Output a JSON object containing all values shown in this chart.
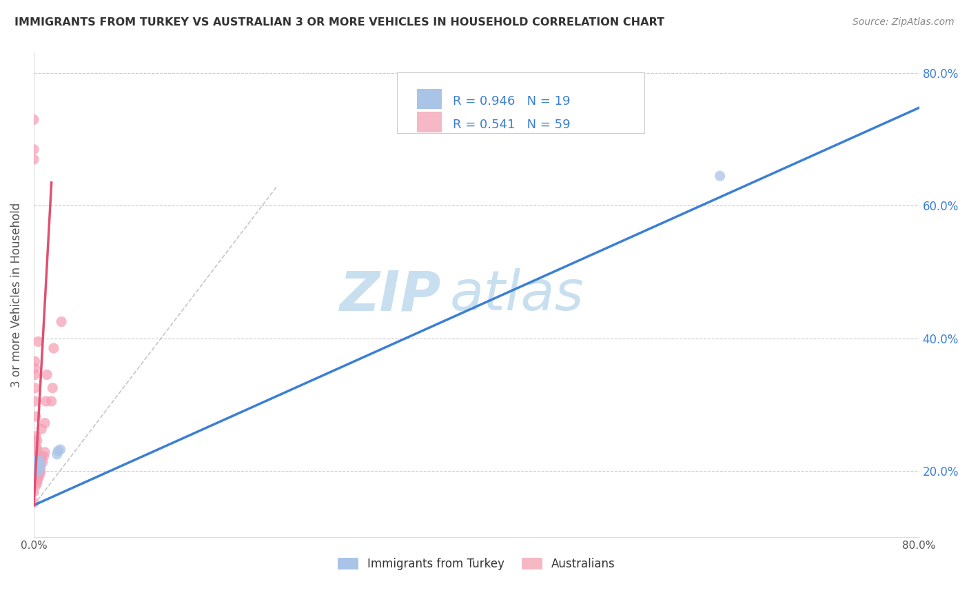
{
  "title": "IMMIGRANTS FROM TURKEY VS AUSTRALIAN 3 OR MORE VEHICLES IN HOUSEHOLD CORRELATION CHART",
  "source": "Source: ZipAtlas.com",
  "ylabel_left": "3 or more Vehicles in Household",
  "xlim": [
    0.0,
    0.8
  ],
  "ylim": [
    0.1,
    0.83
  ],
  "ytick_positions": [
    0.2,
    0.4,
    0.6,
    0.8
  ],
  "ytick_labels_right": [
    "20.0%",
    "40.0%",
    "60.0%",
    "80.0%"
  ],
  "xtick_positions": [
    0.0,
    0.1,
    0.2,
    0.3,
    0.4,
    0.5,
    0.6,
    0.7,
    0.8
  ],
  "xtick_labels": [
    "0.0%",
    "",
    "",
    "",
    "",
    "",
    "",
    "",
    "80.0%"
  ],
  "grid_color": "#cccccc",
  "background_color": "#ffffff",
  "watermark_zip": "ZIP",
  "watermark_atlas": "atlas",
  "watermark_color": "#c8dff0",
  "legend_R1": "R = 0.946",
  "legend_N1": "N = 19",
  "legend_R2": "R = 0.541",
  "legend_N2": "N = 59",
  "legend_color1": "#aac4e8",
  "legend_color2": "#f5b8c4",
  "dot_color_blue": "#aac4e8",
  "dot_color_pink": "#f5a0b5",
  "line_color_blue": "#3a7fd5",
  "line_color_pink": "#e05070",
  "dot_alpha": 0.75,
  "dot_size": 120,
  "blue_scatter_x": [
    0.0,
    0.0,
    0.001,
    0.001,
    0.002,
    0.002,
    0.002,
    0.003,
    0.003,
    0.003,
    0.004,
    0.004,
    0.005,
    0.005,
    0.006,
    0.021,
    0.022,
    0.024,
    0.62
  ],
  "blue_scatter_y": [
    0.2,
    0.215,
    0.2,
    0.205,
    0.198,
    0.207,
    0.212,
    0.205,
    0.21,
    0.215,
    0.2,
    0.208,
    0.21,
    0.215,
    0.207,
    0.225,
    0.23,
    0.232,
    0.645
  ],
  "pink_scatter_x": [
    0.0,
    0.0,
    0.0,
    0.0,
    0.0,
    0.001,
    0.001,
    0.001,
    0.001,
    0.001,
    0.001,
    0.001,
    0.001,
    0.001,
    0.001,
    0.002,
    0.002,
    0.002,
    0.002,
    0.002,
    0.002,
    0.002,
    0.002,
    0.002,
    0.003,
    0.003,
    0.003,
    0.003,
    0.003,
    0.003,
    0.003,
    0.003,
    0.004,
    0.004,
    0.004,
    0.004,
    0.004,
    0.004,
    0.004,
    0.005,
    0.005,
    0.005,
    0.005,
    0.005,
    0.006,
    0.006,
    0.006,
    0.007,
    0.007,
    0.008,
    0.009,
    0.01,
    0.01,
    0.011,
    0.012,
    0.016,
    0.017,
    0.018,
    0.025
  ],
  "pink_scatter_y": [
    0.152,
    0.168,
    0.73,
    0.685,
    0.67,
    0.197,
    0.203,
    0.213,
    0.232,
    0.245,
    0.305,
    0.325,
    0.345,
    0.355,
    0.365,
    0.178,
    0.188,
    0.195,
    0.203,
    0.213,
    0.223,
    0.235,
    0.252,
    0.282,
    0.182,
    0.188,
    0.195,
    0.202,
    0.213,
    0.222,
    0.233,
    0.245,
    0.188,
    0.193,
    0.198,
    0.203,
    0.213,
    0.222,
    0.395,
    0.193,
    0.198,
    0.203,
    0.213,
    0.222,
    0.198,
    0.203,
    0.213,
    0.222,
    0.263,
    0.213,
    0.222,
    0.228,
    0.272,
    0.305,
    0.345,
    0.305,
    0.325,
    0.385,
    0.425
  ],
  "blue_line_x": [
    0.0,
    0.8
  ],
  "blue_line_y": [
    0.148,
    0.748
  ],
  "pink_line_x": [
    0.0,
    0.016
  ],
  "pink_line_y": [
    0.148,
    0.635
  ],
  "ref_line_x": [
    0.0,
    0.22
  ],
  "ref_line_y": [
    0.148,
    0.63
  ],
  "legend_label1": "Immigrants from Turkey",
  "legend_label2": "Australians"
}
